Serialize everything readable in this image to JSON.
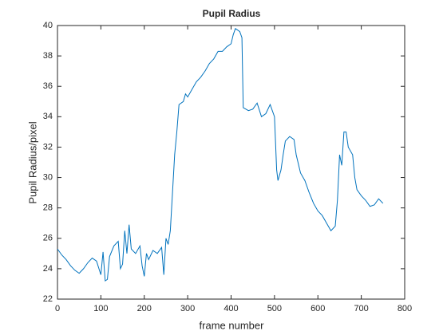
{
  "chart_data": {
    "type": "line",
    "title": "Pupil Radius",
    "xlabel": "frame number",
    "ylabel": "Pupil Radius/pixel",
    "x": [
      0,
      10,
      20,
      30,
      40,
      50,
      60,
      70,
      80,
      90,
      100,
      105,
      110,
      115,
      120,
      130,
      140,
      145,
      150,
      155,
      160,
      165,
      170,
      180,
      190,
      195,
      200,
      205,
      210,
      220,
      230,
      240,
      245,
      250,
      255,
      260,
      265,
      270,
      275,
      280,
      290,
      295,
      300,
      310,
      320,
      330,
      340,
      350,
      360,
      370,
      380,
      390,
      400,
      405,
      410,
      420,
      425,
      428,
      440,
      450,
      460,
      470,
      480,
      490,
      500,
      505,
      508,
      515,
      520,
      525,
      535,
      545,
      550,
      560,
      570,
      580,
      590,
      600,
      610,
      620,
      630,
      640,
      645,
      650,
      655,
      660,
      665,
      670,
      680,
      685,
      690,
      700,
      710,
      720,
      730,
      740,
      750
    ],
    "series": [
      {
        "name": "Pupil Radius",
        "color": "#0072bd",
        "values": [
          25.3,
          24.9,
          24.6,
          24.2,
          23.9,
          23.7,
          24.0,
          24.4,
          24.7,
          24.5,
          23.6,
          25.1,
          23.2,
          23.3,
          24.8,
          25.5,
          25.8,
          24.0,
          24.3,
          26.5,
          25.0,
          26.9,
          25.3,
          25.0,
          25.5,
          24.2,
          23.5,
          25.0,
          24.6,
          25.2,
          25.0,
          25.4,
          23.6,
          26.0,
          25.6,
          26.5,
          29.0,
          31.5,
          33.0,
          34.8,
          35.0,
          35.5,
          35.3,
          35.8,
          36.3,
          36.6,
          37.0,
          37.5,
          37.8,
          38.3,
          38.3,
          38.6,
          38.8,
          39.4,
          39.8,
          39.6,
          39.2,
          34.6,
          34.4,
          34.5,
          34.9,
          34.0,
          34.2,
          34.8,
          34.0,
          30.5,
          29.8,
          30.5,
          31.5,
          32.4,
          32.7,
          32.5,
          31.5,
          30.3,
          29.8,
          29.0,
          28.3,
          27.8,
          27.5,
          27.0,
          26.5,
          26.8,
          28.5,
          31.5,
          30.8,
          33.0,
          33.0,
          32.0,
          31.5,
          30.0,
          29.2,
          28.8,
          28.5,
          28.1,
          28.2,
          28.6,
          28.3
        ]
      }
    ],
    "xlim": [
      0,
      800
    ],
    "xticks": [
      0,
      100,
      200,
      300,
      400,
      500,
      600,
      700,
      800
    ],
    "ylim": [
      22,
      40
    ],
    "yticks": [
      22,
      24,
      26,
      28,
      30,
      32,
      34,
      36,
      38,
      40
    ]
  }
}
